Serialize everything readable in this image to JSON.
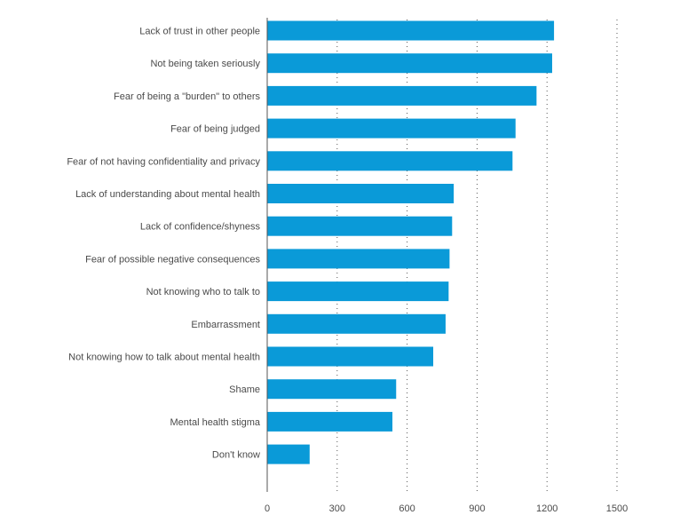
{
  "colors": {
    "bar": "#0a9ad8",
    "text": "#4a4a4a",
    "axis": "#555555",
    "grid": "#555555",
    "background": "#ffffff"
  },
  "chart_data": {
    "type": "bar",
    "orientation": "horizontal",
    "title": "",
    "xlabel": "",
    "ylabel": "",
    "categories": [
      "Lack of trust in other people",
      "Not being taken seriously",
      "Fear of being a \"burden\" to others",
      "Fear of being judged",
      "Fear of not having confidentiality and privacy",
      "Lack of understanding about mental health",
      "Lack of confidence/shyness",
      "Fear of possible negative consequences",
      "Not knowing who to talk to",
      "Embarrassment",
      "Not knowing how to talk about mental health",
      "Shame",
      "Mental health stigma",
      "Don't know"
    ],
    "values": [
      1230,
      1222,
      1155,
      1065,
      1052,
      800,
      793,
      782,
      778,
      765,
      712,
      553,
      537,
      182
    ],
    "xlim": [
      0,
      1500
    ],
    "xticks": [
      0,
      300,
      600,
      900,
      1200,
      1500
    ],
    "xtick_labels": [
      "0",
      "300",
      "600",
      "900",
      "1200",
      "1500"
    ],
    "grid": true,
    "grid_style": "dotted vertical",
    "legend": "none"
  }
}
